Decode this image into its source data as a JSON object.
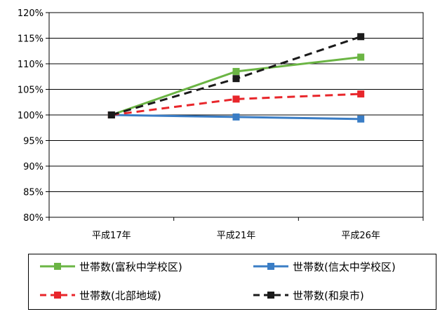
{
  "chart_data": {
    "type": "line",
    "title": "",
    "xlabel": "",
    "ylabel": "",
    "categories": [
      "平成17年",
      "平成21年",
      "平成26年"
    ],
    "ylim": [
      80,
      120
    ],
    "yticks": [
      80,
      85,
      90,
      95,
      100,
      105,
      110,
      115,
      120
    ],
    "ytick_labels": [
      "80%",
      "85%",
      "90%",
      "95%",
      "100%",
      "105%",
      "110%",
      "115%",
      "120%"
    ],
    "grid": true,
    "legend_position": "bottom",
    "series": [
      {
        "name": "世帯数(富秋中学校区)",
        "values": [
          100,
          108.5,
          111.3
        ],
        "color": "#6bb544",
        "dash": "solid",
        "marker": "square"
      },
      {
        "name": "世帯数(信太中学校区)",
        "values": [
          100,
          99.6,
          99.2
        ],
        "color": "#3a7dc5",
        "dash": "solid",
        "marker": "square"
      },
      {
        "name": "世帯数(北部地域)",
        "values": [
          100,
          103.1,
          104.1
        ],
        "color": "#e8262b",
        "dash": "dashed",
        "marker": "square"
      },
      {
        "name": "世帯数(和泉市)",
        "values": [
          100,
          107.1,
          115.3
        ],
        "color": "#1a1a1a",
        "dash": "dashed",
        "marker": "square"
      }
    ]
  }
}
